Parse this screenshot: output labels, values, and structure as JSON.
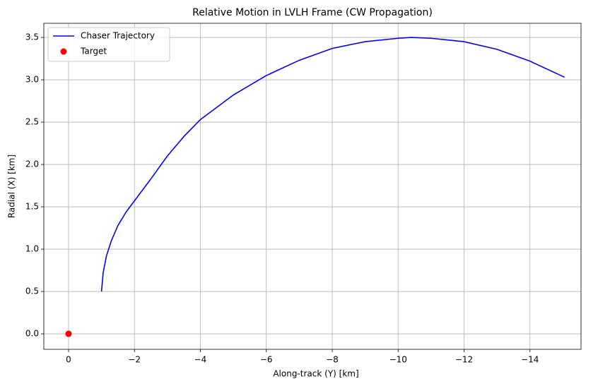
{
  "chart_data": {
    "type": "line",
    "title": "Relative Motion in LVLH Frame (CW Propagation)",
    "x_label": "Along-track (Y) [km]",
    "y_label": "Radial (X) [km]",
    "xlim": [
      0.75,
      -15.55
    ],
    "ylim": [
      -0.183,
      3.667
    ],
    "xticks": [
      0,
      {
        "value": -2,
        "label": "−2"
      },
      {
        "value": -4,
        "label": "−4"
      },
      {
        "value": -6,
        "label": "−6"
      },
      {
        "value": -8,
        "label": "−8"
      },
      {
        "value": -10,
        "label": "−10"
      },
      {
        "value": -12,
        "label": "−12"
      },
      {
        "value": -14,
        "label": "−14"
      }
    ],
    "yticks": [
      {
        "value": 0,
        "label": "0.0"
      },
      0.5,
      {
        "value": 1,
        "label": "1.0"
      },
      1.5,
      {
        "value": 2,
        "label": "2.0"
      },
      2.5,
      {
        "value": 3,
        "label": "3.0"
      },
      3.5
    ],
    "grid": true,
    "legend": "upper left",
    "series": [
      {
        "name": "Chaser Trajectory",
        "color": "#0000ff",
        "mode": "line",
        "x": [
          -1.0,
          -1.05,
          -1.15,
          -1.3,
          -1.5,
          -1.75,
          -2,
          -2.5,
          -3,
          -3.5,
          -4,
          -5,
          -6,
          -7,
          -8,
          -9,
          -10,
          -10.4,
          -11,
          -12,
          -13,
          -14,
          -15.05
        ],
        "values": [
          0.5,
          0.72,
          0.92,
          1.1,
          1.28,
          1.44,
          1.57,
          1.83,
          2.1,
          2.33,
          2.53,
          2.82,
          3.05,
          3.23,
          3.37,
          3.45,
          3.49,
          3.5,
          3.49,
          3.45,
          3.36,
          3.22,
          3.03
        ]
      },
      {
        "name": "Target",
        "color": "#ff0000",
        "mode": "marker",
        "x": [
          0
        ],
        "values": [
          0
        ]
      }
    ]
  }
}
